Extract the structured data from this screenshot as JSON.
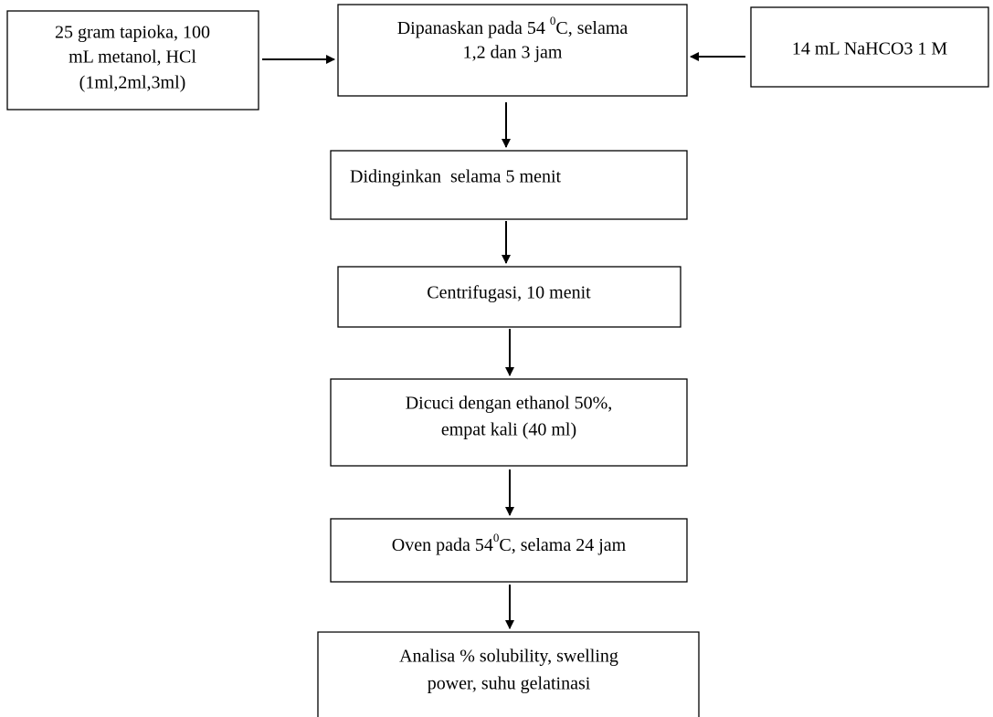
{
  "nodes": [
    {
      "lines": [
        "25 gram tapioka, 100",
        "mL metanol, HCl",
        "(1ml,2ml,3ml)"
      ]
    },
    {
      "lines": [
        [
          "Dipanaskan pada 54 ",
          "0",
          "C, selama"
        ],
        "1,2 dan 3 jam"
      ]
    },
    {
      "lines": [
        "14 mL NaHCO3 1 M"
      ]
    },
    {
      "lines": [
        "Didinginkan  selama 5 menit"
      ]
    },
    {
      "lines": [
        "Centrifugasi, 10 menit"
      ]
    },
    {
      "lines": [
        "Dicuci dengan ethanol 50%,",
        "empat kali (40 ml)"
      ]
    },
    {
      "lines": [
        [
          "Oven pada 54",
          "0",
          "C, selama 24 jam"
        ]
      ]
    },
    {
      "lines": [
        "Analisa % solubility, swelling",
        "power, suhu gelatinasi"
      ]
    }
  ]
}
